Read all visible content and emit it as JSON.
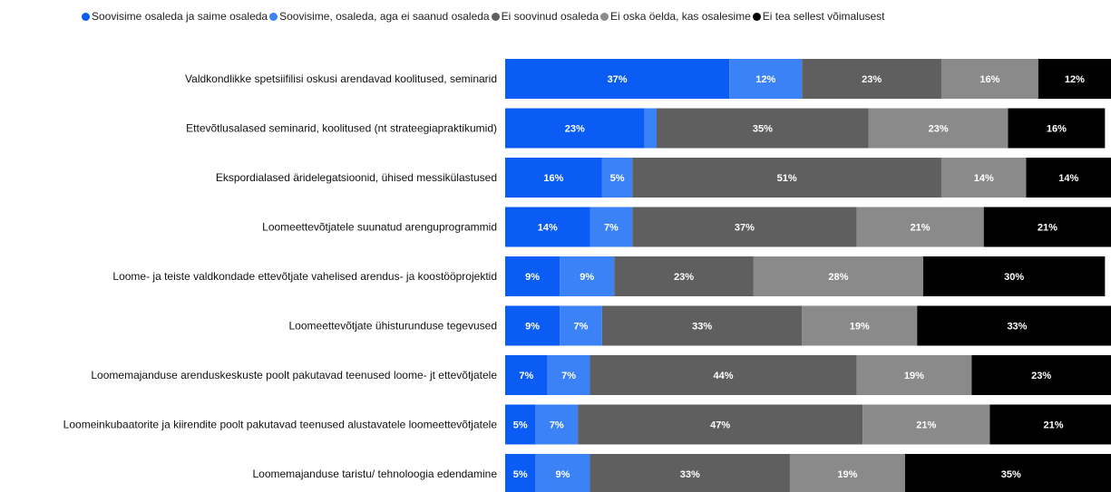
{
  "chart_data": {
    "type": "bar",
    "orientation": "horizontal",
    "stacked": true,
    "normalized_percent": true,
    "legend_position": "top",
    "grid": false,
    "xlim": [
      0,
      100
    ],
    "categories": [
      "Valdkondlikke spetsiifilisi oskusi arendavad koolitused, seminarid",
      "Ettevõtlusalased seminarid, koolitused (nt strateegiapraktikumid)",
      "Ekspordialased äridelegatsioonid, ühised messikülastused",
      "Loomeettevõtjatele suunatud arenguprogrammid",
      "Loome- ja teiste valdkondade ettevõtjate vahelised arendus- ja koostööprojektid",
      "Loomeettevõtjate ühisturunduse tegevused",
      "Loomemajanduse arenduskeskuste poolt pakutavad teenused loome- jt ettevõtjatele",
      "Loomeinkubaatorite ja kiirendite poolt pakutavad teenused alustavatele loomeettevõtjatele",
      "Loomemajanduse taristu/ tehnoloogia edendamine"
    ],
    "series": [
      {
        "name": "Soovisime osaleda ja saime osaleda",
        "color": "#0a5cf5",
        "values": [
          37,
          23,
          16,
          14,
          9,
          9,
          7,
          5,
          5
        ],
        "labels": [
          "37%",
          "23%",
          "16%",
          "14%",
          "9%",
          "9%",
          "7%",
          "5%",
          "5%"
        ]
      },
      {
        "name": "Soovisime, osaleda, aga ei saanud osaleda",
        "color": "#3b82f7",
        "values": [
          12,
          2,
          5,
          7,
          9,
          7,
          7,
          7,
          9
        ],
        "labels": [
          "12%",
          "",
          "5%",
          "7%",
          "9%",
          "7%",
          "7%",
          "7%",
          "9%"
        ]
      },
      {
        "name": "Ei soovinud osaleda",
        "color": "#5f5f5f",
        "values": [
          23,
          35,
          51,
          37,
          23,
          33,
          44,
          47,
          33
        ],
        "labels": [
          "23%",
          "35%",
          "51%",
          "37%",
          "23%",
          "33%",
          "44%",
          "47%",
          "33%"
        ]
      },
      {
        "name": "Ei oska öelda, kas osalesime",
        "color": "#8a8a8a",
        "values": [
          16,
          23,
          14,
          21,
          28,
          19,
          19,
          21,
          19
        ],
        "labels": [
          "16%",
          "23%",
          "14%",
          "21%",
          "28%",
          "19%",
          "19%",
          "21%",
          "19%"
        ]
      },
      {
        "name": "Ei tea sellest võimalusest",
        "color": "#000000",
        "values": [
          12,
          16,
          14,
          21,
          30,
          33,
          23,
          21,
          35
        ],
        "labels": [
          "12%",
          "16%",
          "14%",
          "21%",
          "30%",
          "33%",
          "23%",
          "21%",
          "35%"
        ]
      }
    ]
  }
}
